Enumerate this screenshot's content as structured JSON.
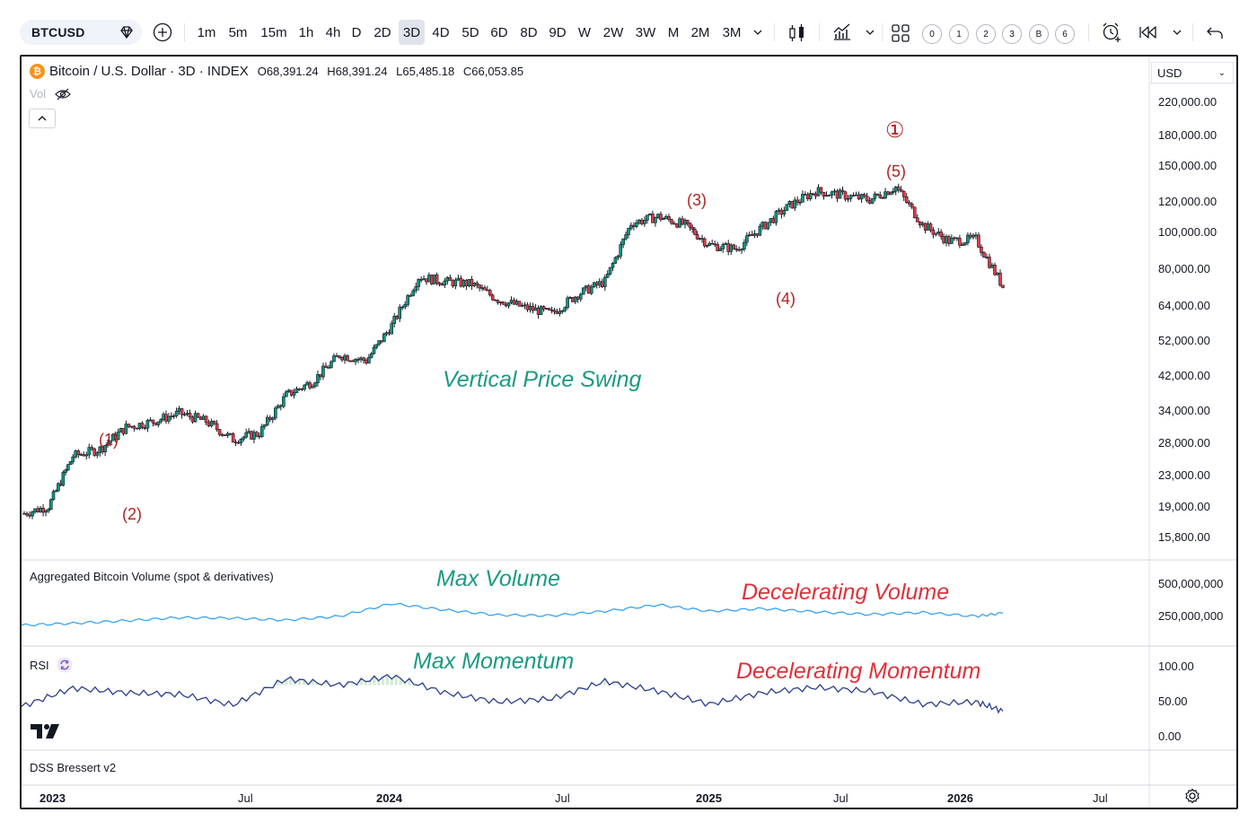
{
  "toolbar": {
    "symbol": "BTCUSD",
    "intervals": [
      "1m",
      "5m",
      "15m",
      "1h",
      "4h",
      "D",
      "2D",
      "3D",
      "4D",
      "5D",
      "6D",
      "8D",
      "9D",
      "W",
      "2W",
      "3W",
      "M",
      "2M",
      "3M"
    ],
    "active_interval": "3D",
    "layout_numbers": [
      "0",
      "1",
      "2",
      "3",
      "B",
      "6"
    ]
  },
  "header": {
    "title": "Bitcoin / U.S. Dollar · 3D · INDEX",
    "open": "O68,391.24",
    "high": "H68,391.24",
    "low": "L65,485.18",
    "close": "C66,053.85",
    "vol_label": "Vol",
    "currency": "USD"
  },
  "price_axis": [
    "220,000.00",
    "180,000.00",
    "150,000.00",
    "120,000.00",
    "100,000.00",
    "80,000.00",
    "64,000.00",
    "52,000.00",
    "42,000.00",
    "34,000.00",
    "28,000.00",
    "23,000.00",
    "19,000.00",
    "15,800.00"
  ],
  "volume_axis": [
    "500,000,000",
    "250,000,000"
  ],
  "rsi_axis": [
    "100.00",
    "50.00",
    "0.00"
  ],
  "time_axis": [
    "2023",
    "Jul",
    "2024",
    "Jul",
    "2025",
    "Jul",
    "2026",
    "Jul"
  ],
  "panes": {
    "volume_label": "Aggregated Bitcoin Volume (spot & derivatives)",
    "rsi_label": "RSI",
    "dss_label": "DSS Bressert v2"
  },
  "annotations": {
    "wave1": "(1)",
    "wave2": "(2)",
    "wave3": "(3)",
    "wave4": "(4)",
    "wave5": "(5)",
    "circled": "①",
    "vertical_swing": "Vertical Price Swing",
    "max_volume": "Max Volume",
    "decel_volume": "Decelerating Volume",
    "max_momentum": "Max Momentum",
    "decel_momentum": "Decelerating Momentum"
  },
  "colors": {
    "up": "#089981",
    "down": "#f23645",
    "volume_line": "#2a9df4",
    "rsi_line": "#2c3e8c",
    "green_text": "#1b9a82",
    "red_text": "#e0303a",
    "wave_text": "#b22222",
    "btc": "#f7931a"
  },
  "chart_data": [
    {
      "type": "line",
      "title": "Bitcoin / U.S. Dollar · 3D · INDEX",
      "ylabel": "USD",
      "log_scale": true,
      "ylim": [
        14000,
        240000
      ],
      "x": [
        "2023-01",
        "2023-02",
        "2023-03",
        "2023-04",
        "2023-05",
        "2023-06",
        "2023-07",
        "2023-08",
        "2023-09",
        "2023-10",
        "2023-11",
        "2023-12",
        "2024-01",
        "2024-02",
        "2024-03",
        "2024-04",
        "2024-05",
        "2024-06",
        "2024-07",
        "2024-08",
        "2024-09",
        "2024-10",
        "2024-11",
        "2024-12",
        "2025-01",
        "2025-02",
        "2025-03",
        "2025-04",
        "2025-05",
        "2025-06",
        "2025-07",
        "2025-08",
        "2025-09",
        "2025-10",
        "2025-11",
        "2025-12",
        "2026-01",
        "2026-02"
      ],
      "series": [
        {
          "values": [
            16500,
            17300,
            23500,
            24500,
            28000,
            29000,
            30500,
            29000,
            26000,
            27000,
            34000,
            37000,
            43500,
            42000,
            52000,
            70000,
            68000,
            67000,
            61000,
            58000,
            56000,
            63000,
            68000,
            97000,
            101000,
            96000,
            85000,
            83000,
            95000,
            108000,
            118000,
            115000,
            112000,
            121000,
            96000,
            87000,
            88000,
            66000
          ]
        }
      ]
    },
    {
      "type": "line",
      "title": "Aggregated Bitcoin Volume (spot & derivatives)",
      "ylim": [
        0,
        600000000
      ],
      "x": [
        "2023-01",
        "2023-03",
        "2023-05",
        "2023-07",
        "2023-09",
        "2023-11",
        "2024-01",
        "2024-03",
        "2024-05",
        "2024-07",
        "2024-09",
        "2024-11",
        "2025-01",
        "2025-03",
        "2025-05",
        "2025-07",
        "2025-09",
        "2025-11",
        "2026-01",
        "2026-02"
      ],
      "series": [
        {
          "values": [
            150000000,
            165000000,
            185000000,
            210000000,
            205000000,
            190000000,
            220000000,
            320000000,
            270000000,
            230000000,
            225000000,
            260000000,
            310000000,
            260000000,
            280000000,
            255000000,
            235000000,
            250000000,
            220000000,
            245000000
          ]
        }
      ]
    },
    {
      "type": "line",
      "title": "RSI",
      "ylim": [
        0,
        100
      ],
      "x": [
        "2023-01",
        "2023-03",
        "2023-05",
        "2023-07",
        "2023-09",
        "2023-11",
        "2024-01",
        "2024-03",
        "2024-05",
        "2024-07",
        "2024-09",
        "2024-11",
        "2025-01",
        "2025-03",
        "2025-05",
        "2025-07",
        "2025-09",
        "2025-11",
        "2026-01",
        "2026-02"
      ],
      "series": [
        {
          "values": [
            42,
            66,
            60,
            58,
            44,
            78,
            70,
            82,
            60,
            48,
            52,
            75,
            62,
            45,
            60,
            67,
            62,
            45,
            48,
            36
          ]
        }
      ]
    }
  ]
}
